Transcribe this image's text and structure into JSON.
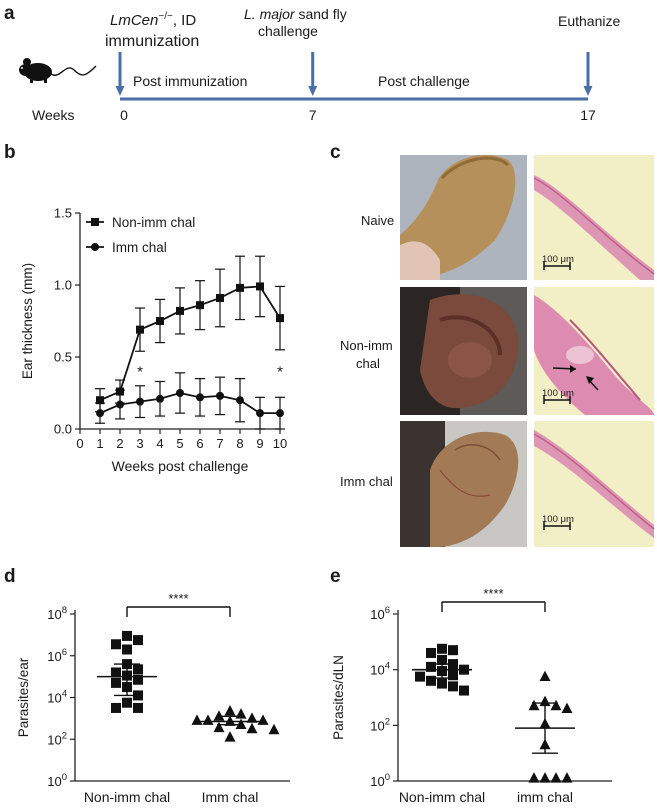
{
  "panel_a": {
    "letter": "a",
    "immunization_label_italic": "LmCen",
    "immunization_label_sup": "−/−",
    "immunization_label_rest": ", ID",
    "immunization_label_line2": "immunization",
    "challenge_label_italic": "L. major",
    "challenge_label_rest": " sand fly",
    "challenge_label_line2": "challenge",
    "euthanize_label": "Euthanize",
    "post_immunization_label": "Post immunization",
    "post_challenge_label": "Post challenge",
    "weeks_label": "Weeks",
    "timepoints": [
      "0",
      "7",
      "17"
    ],
    "timeline_values": [
      0,
      7,
      17
    ],
    "timeline_max": 17,
    "accent_color": "#4a6fa5",
    "icon": "mouse-icon"
  },
  "panel_c": {
    "letter": "c",
    "rows": [
      {
        "label_line1": "Naive",
        "label_line2": "",
        "scale": "100 μm",
        "arrows": 0
      },
      {
        "label_line1": "Non-imm",
        "label_line2": "chal",
        "scale": "100 μm",
        "arrows": 2
      },
      {
        "label_line1": "Imm chal",
        "label_line2": "",
        "scale": "100 μm",
        "arrows": 0
      }
    ]
  },
  "chart_data": [
    {
      "letter": "b",
      "type": "line",
      "xlabel": "Weeks post challenge",
      "ylabel": "Ear thickness (mm)",
      "xlim": [
        0,
        10
      ],
      "ylim": [
        0,
        1.5
      ],
      "xticks": [
        0,
        1,
        2,
        3,
        4,
        5,
        6,
        7,
        8,
        9,
        10
      ],
      "xtick_labels": [
        "0",
        "1",
        "2",
        "3",
        "4",
        "5",
        "6",
        "7",
        "8",
        "9",
        "10"
      ],
      "yticks": [
        0,
        0.5,
        1.0,
        1.5
      ],
      "ytick_labels": [
        "0.0",
        "0.5",
        "1.0",
        "1.5"
      ],
      "legend_position": "top-left",
      "x": [
        1,
        2,
        3,
        4,
        5,
        6,
        7,
        8,
        9,
        10
      ],
      "series": [
        {
          "name": "Non-imm chal",
          "marker": "square",
          "values": [
            0.2,
            0.26,
            0.69,
            0.75,
            0.82,
            0.86,
            0.91,
            0.98,
            0.99,
            0.77
          ],
          "errors": [
            0.08,
            0.08,
            0.15,
            0.15,
            0.16,
            0.17,
            0.2,
            0.22,
            0.21,
            0.22
          ]
        },
        {
          "name": "Imm chal",
          "marker": "circle",
          "values": [
            0.11,
            0.17,
            0.19,
            0.21,
            0.25,
            0.22,
            0.23,
            0.2,
            0.11,
            0.11
          ],
          "errors": [
            0.07,
            0.1,
            0.11,
            0.12,
            0.14,
            0.13,
            0.13,
            0.15,
            0.11,
            0.11
          ]
        }
      ],
      "annotations": [
        {
          "text": "*",
          "x": 3,
          "y": 0.42
        },
        {
          "text": "*",
          "x": 10,
          "y": 0.42
        }
      ]
    },
    {
      "letter": "d",
      "type": "scatter",
      "ylabel": "Parasites/ear",
      "yscale": "log",
      "ylim_exp": [
        0,
        8
      ],
      "ytick_exps": [
        0,
        2,
        4,
        6,
        8
      ],
      "significance": "****",
      "categories": [
        "Non-imm chal",
        "Imm chal"
      ],
      "groups": [
        {
          "name": "Non-imm chal",
          "marker": "square",
          "log10_values": [
            6.95,
            6.75,
            6.55,
            6.3,
            5.6,
            5.35,
            5.2,
            5.05,
            4.85,
            4.7,
            4.5,
            4.1,
            3.75,
            3.5,
            3.5
          ],
          "log10_median": 5.0,
          "log10_ci": [
            4.1,
            5.6
          ]
        },
        {
          "name": "Imm chal",
          "marker": "triangle",
          "log10_values": [
            3.35,
            3.2,
            3.1,
            3.0,
            2.9,
            2.9,
            2.9,
            2.85,
            2.7,
            2.55,
            2.5,
            2.45,
            2.1
          ],
          "log10_median": 2.85,
          "log10_ci": [
            2.7,
            3.1
          ]
        }
      ]
    },
    {
      "letter": "e",
      "type": "scatter",
      "ylabel": "Parasites/dLN",
      "yscale": "log",
      "ylim_exp": [
        0,
        6
      ],
      "ytick_exps": [
        0,
        2,
        4,
        6
      ],
      "significance": "****",
      "categories": [
        "Non-imm chal",
        "imm chal"
      ],
      "groups": [
        {
          "name": "Non-imm chal",
          "marker": "square",
          "log10_values": [
            4.75,
            4.7,
            4.6,
            4.35,
            4.2,
            4.1,
            4.0,
            3.95,
            3.8,
            3.75,
            3.6,
            3.5,
            3.4,
            3.25
          ],
          "log10_median": 4.0,
          "log10_ci": [
            3.7,
            4.2
          ]
        },
        {
          "name": "imm chal",
          "marker": "triangle",
          "log10_values": [
            3.75,
            2.85,
            2.7,
            2.7,
            2.6,
            2.05,
            1.3,
            0.1,
            0.1,
            0.1,
            0.1
          ],
          "log10_median": 1.9,
          "log10_ci": [
            1.0,
            2.8
          ]
        }
      ]
    }
  ]
}
